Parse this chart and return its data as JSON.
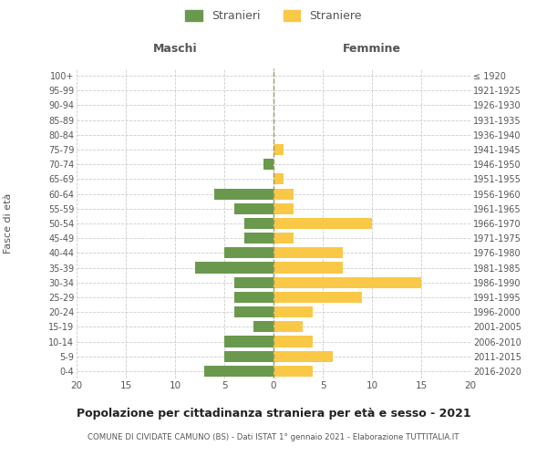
{
  "age_groups": [
    "0-4",
    "5-9",
    "10-14",
    "15-19",
    "20-24",
    "25-29",
    "30-34",
    "35-39",
    "40-44",
    "45-49",
    "50-54",
    "55-59",
    "60-64",
    "65-69",
    "70-74",
    "75-79",
    "80-84",
    "85-89",
    "90-94",
    "95-99",
    "100+"
  ],
  "birth_years": [
    "2016-2020",
    "2011-2015",
    "2006-2010",
    "2001-2005",
    "1996-2000",
    "1991-1995",
    "1986-1990",
    "1981-1985",
    "1976-1980",
    "1971-1975",
    "1966-1970",
    "1961-1965",
    "1956-1960",
    "1951-1955",
    "1946-1950",
    "1941-1945",
    "1936-1940",
    "1931-1935",
    "1926-1930",
    "1921-1925",
    "≤ 1920"
  ],
  "maschi": [
    7,
    5,
    5,
    2,
    4,
    4,
    4,
    8,
    5,
    3,
    3,
    4,
    6,
    0,
    1,
    0,
    0,
    0,
    0,
    0,
    0
  ],
  "femmine": [
    4,
    6,
    4,
    3,
    4,
    9,
    15,
    7,
    7,
    2,
    10,
    2,
    2,
    1,
    0,
    1,
    0,
    0,
    0,
    0,
    0
  ],
  "maschi_color": "#6a994e",
  "femmine_color": "#f9c846",
  "title": "Popolazione per cittadinanza straniera per età e sesso - 2021",
  "subtitle": "COMUNE DI CIVIDATE CAMUNO (BS) - Dati ISTAT 1° gennaio 2021 - Elaborazione TUTTITALIA.IT",
  "ylabel_left": "Fasce di età",
  "header_maschi": "Maschi",
  "header_femmine": "Femmine",
  "xlim": 20,
  "legend_maschi": "Stranieri",
  "legend_femmine": "Straniere",
  "bg_color": "#ffffff",
  "grid_color": "#cccccc",
  "text_color": "#555555",
  "dashed_line_color": "#999966"
}
